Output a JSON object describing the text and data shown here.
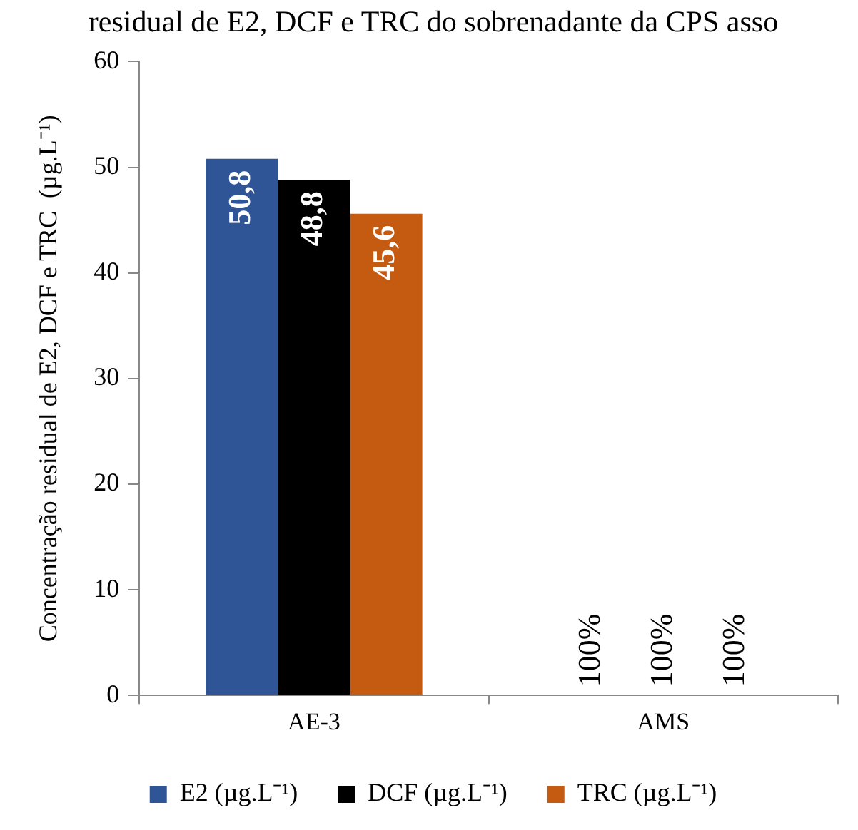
{
  "chart_data": {
    "type": "bar",
    "title": "residual de E2, DCF e TRC do sobrenadante da CPS asso",
    "ylabel": "Concentração residual de E2, DCF e TRC  (µg.L⁻¹)",
    "categories": [
      "AE-3",
      "AMS"
    ],
    "series": [
      {
        "name": "E2 (µg.L⁻¹)",
        "color": "#2f5597",
        "values": [
          50.8,
          0
        ],
        "value_labels": [
          "50,8",
          null
        ]
      },
      {
        "name": "DCF (µg.L⁻¹)",
        "color": "#000000",
        "values": [
          48.8,
          0
        ],
        "value_labels": [
          "48,8",
          null
        ]
      },
      {
        "name": "TRC (µg.L⁻¹)",
        "color": "#c55a11",
        "values": [
          45.6,
          0
        ],
        "value_labels": [
          "45,6",
          null
        ]
      }
    ],
    "annotations": [
      {
        "text": "100%",
        "x": "AMS",
        "y": 0
      },
      {
        "text": "100%",
        "x": "AMS",
        "y": 0
      },
      {
        "text": "100%",
        "x": "AMS",
        "y": 0
      }
    ],
    "ylim": [
      0,
      60
    ],
    "yticks": [
      0,
      10,
      20,
      30,
      40,
      50,
      60
    ],
    "grid": false,
    "legend": "bottom"
  }
}
